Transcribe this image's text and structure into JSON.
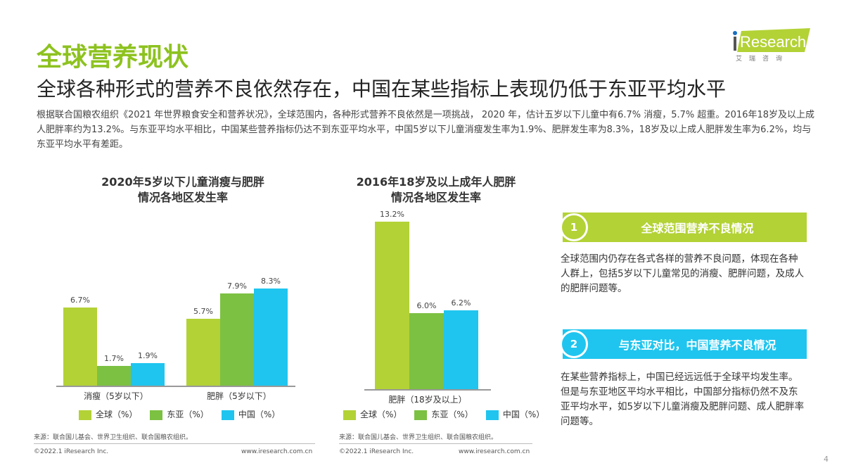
{
  "header": {
    "title": "全球营养现状",
    "subtitle": "全球各种形式的营养不良依然存在，中国在某些指标上表现仍低于东亚平均水平",
    "intro": "根据联合国粮农组织《2021 年世界粮食安全和营养状况》，全球范围内，各种形式营养不良依然是一项挑战， 2020 年，估计五岁以下儿童中有6.7% 消瘦，5.7% 超重。2016年18岁及以上成人肥胖率约为13.2%。与东亚平均水平相比，中国某些营养指标仍达不到东亚平均水平，中国5岁以下儿童消瘦发生率为1.9%、肥胖发生率为8.3%，18岁及以上成人肥胖发生率为6.2%，均与东亚平均水平有差距。"
  },
  "logo": {
    "text": "iResearch",
    "sub": "艾瑞咨询"
  },
  "colors": {
    "global": "#b3d236",
    "east_asia": "#7cc142",
    "china": "#1fc5ef",
    "title": "#8dc21f"
  },
  "chart_data": [
    {
      "type": "bar",
      "title": "2020年5岁以下儿童消瘦与肥胖情况各地区发生率",
      "title_lines": [
        "2020年5岁以下儿童消瘦与肥胖",
        "情况各地区发生率"
      ],
      "categories": [
        "消瘦（5岁以下）",
        "肥胖（5岁以下）"
      ],
      "series": [
        {
          "name": "全球（%）",
          "values": [
            6.7,
            5.7
          ]
        },
        {
          "name": "东亚（%）",
          "values": [
            1.7,
            7.9
          ]
        },
        {
          "name": "中国（%）",
          "values": [
            1.9,
            8.3
          ]
        }
      ],
      "legend": "bottom",
      "grid": false,
      "ylim": [
        0,
        9
      ]
    },
    {
      "type": "bar",
      "title": "2016年18岁及以上成年人肥胖情况各地区发生率",
      "title_lines": [
        "2016年18岁及以上成年人肥胖",
        "情况各地区发生率"
      ],
      "categories": [
        "肥胖（18岁及以上）"
      ],
      "series": [
        {
          "name": "全球（%）",
          "values": [
            13.2
          ]
        },
        {
          "name": "东亚（%）",
          "values": [
            6.0
          ]
        },
        {
          "name": "中国（%）",
          "values": [
            6.2
          ]
        }
      ],
      "legend": "bottom",
      "grid": false,
      "ylim": [
        0,
        14
      ]
    }
  ],
  "footer": {
    "source": "来源：联合国儿基会、世界卫生组织、联合国粮农组织。",
    "copyright": "©2022.1 iResearch Inc.",
    "url": "www.iresearch.com.cn",
    "page": "4"
  },
  "panels": [
    {
      "num": "1",
      "title": "全球范围营养不良情况",
      "text": "全球范围内仍存在各式各样的营养不良问题，体现在各种人群上，包括5岁以下儿童常见的消瘦、肥胖问题，及成人的肥胖问题等。",
      "color": "#b3d236"
    },
    {
      "num": "2",
      "title": "与东亚对比，中国营养不良情况",
      "text": "在某些营养指标上，中国已经远远低于全球平均发生率。但是与东亚地区平均水平相比，中国部分指标仍然不及东亚平均水平，如5岁以下儿童消瘦及肥胖问题、成人肥胖率问题等。",
      "color": "#1fc5ef"
    }
  ]
}
